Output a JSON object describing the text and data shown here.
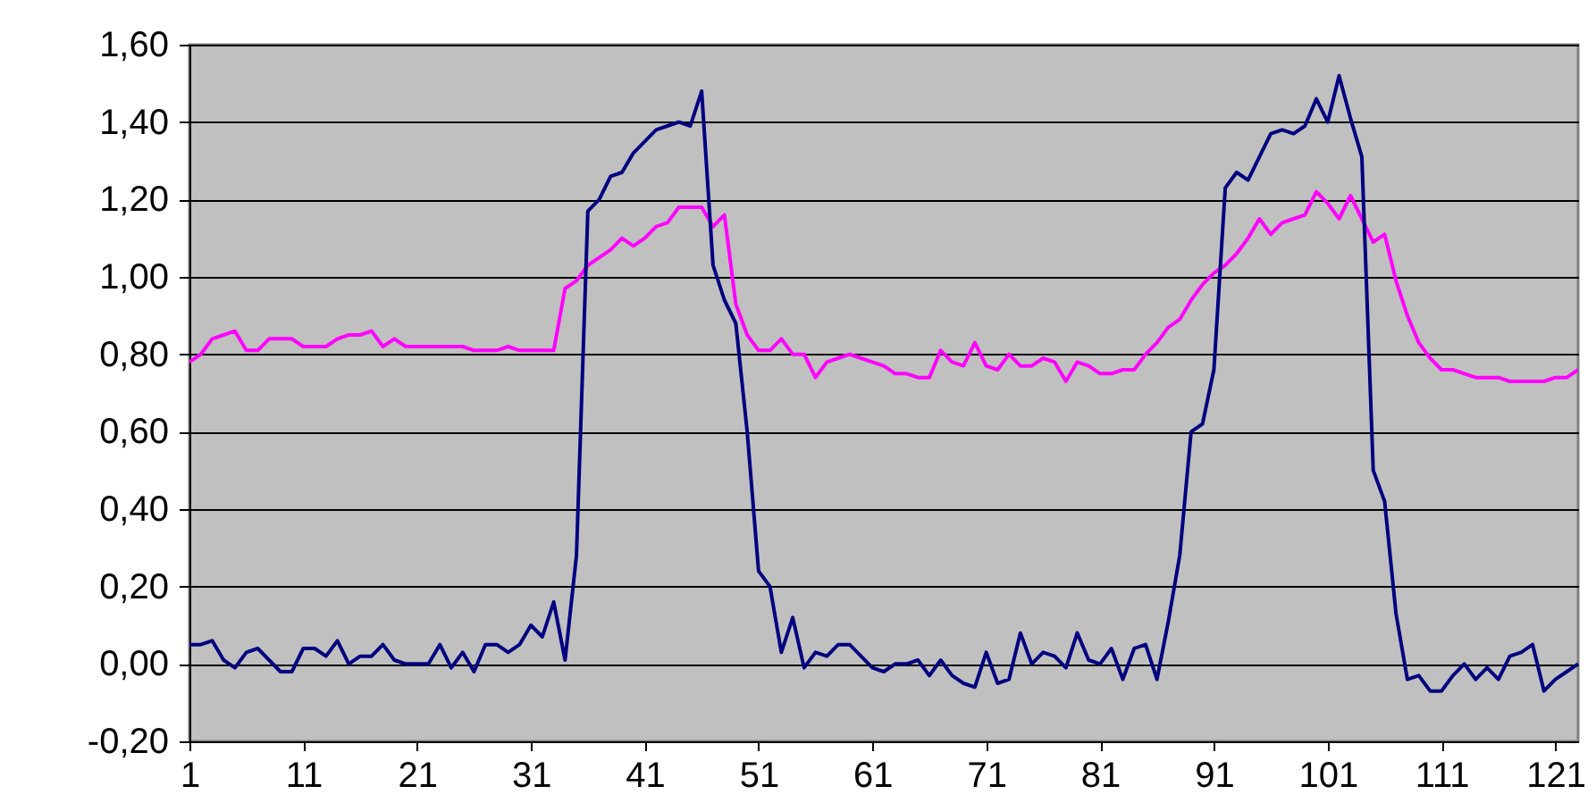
{
  "chart_data": {
    "type": "line",
    "x": [
      1,
      2,
      3,
      4,
      5,
      6,
      7,
      8,
      9,
      10,
      11,
      12,
      13,
      14,
      15,
      16,
      17,
      18,
      19,
      20,
      21,
      22,
      23,
      24,
      25,
      26,
      27,
      28,
      29,
      30,
      31,
      32,
      33,
      34,
      35,
      36,
      37,
      38,
      39,
      40,
      41,
      42,
      43,
      44,
      45,
      46,
      47,
      48,
      49,
      50,
      51,
      52,
      53,
      54,
      55,
      56,
      57,
      58,
      59,
      60,
      61,
      62,
      63,
      64,
      65,
      66,
      67,
      68,
      69,
      70,
      71,
      72,
      73,
      74,
      75,
      76,
      77,
      78,
      79,
      80,
      81,
      82,
      83,
      84,
      85,
      86,
      87,
      88,
      89,
      90,
      91,
      92,
      93,
      94,
      95,
      96,
      97,
      98,
      99,
      100,
      101,
      102,
      103,
      104,
      105,
      106,
      107,
      108,
      109,
      110,
      111,
      112,
      113,
      114,
      115,
      116,
      117,
      118,
      119,
      120,
      121,
      122,
      123
    ],
    "series": [
      {
        "color": "#ff00ff",
        "values": [
          0.78,
          0.8,
          0.84,
          0.85,
          0.86,
          0.81,
          0.81,
          0.84,
          0.84,
          0.84,
          0.82,
          0.82,
          0.82,
          0.84,
          0.85,
          0.85,
          0.86,
          0.82,
          0.84,
          0.82,
          0.82,
          0.82,
          0.82,
          0.82,
          0.82,
          0.81,
          0.81,
          0.81,
          0.82,
          0.81,
          0.81,
          0.81,
          0.81,
          0.97,
          0.99,
          1.03,
          1.05,
          1.07,
          1.1,
          1.08,
          1.1,
          1.13,
          1.14,
          1.18,
          1.18,
          1.18,
          1.13,
          1.16,
          0.93,
          0.85,
          0.81,
          0.81,
          0.84,
          0.8,
          0.8,
          0.74,
          0.78,
          0.79,
          0.8,
          0.79,
          0.78,
          0.77,
          0.75,
          0.75,
          0.74,
          0.74,
          0.81,
          0.78,
          0.77,
          0.83,
          0.77,
          0.76,
          0.8,
          0.77,
          0.77,
          0.79,
          0.78,
          0.73,
          0.78,
          0.77,
          0.75,
          0.75,
          0.76,
          0.76,
          0.8,
          0.83,
          0.87,
          0.89,
          0.94,
          0.98,
          1.01,
          1.03,
          1.06,
          1.1,
          1.15,
          1.11,
          1.14,
          1.15,
          1.16,
          1.22,
          1.19,
          1.15,
          1.21,
          1.15,
          1.09,
          1.11,
          0.99,
          0.9,
          0.83,
          0.79,
          0.76,
          0.76,
          0.75,
          0.74,
          0.74,
          0.74,
          0.73,
          0.73,
          0.73,
          0.73,
          0.74,
          0.74,
          0.76
        ]
      },
      {
        "color": "#000080",
        "values": [
          0.05,
          0.05,
          0.06,
          0.01,
          -0.01,
          0.03,
          0.04,
          0.01,
          -0.02,
          -0.02,
          0.04,
          0.04,
          0.02,
          0.06,
          0.0,
          0.02,
          0.02,
          0.05,
          0.01,
          0.0,
          0.0,
          0.0,
          0.05,
          -0.01,
          0.03,
          -0.02,
          0.05,
          0.05,
          0.03,
          0.05,
          0.1,
          0.07,
          0.16,
          0.01,
          0.28,
          1.17,
          1.2,
          1.26,
          1.27,
          1.32,
          1.35,
          1.38,
          1.39,
          1.4,
          1.39,
          1.48,
          1.03,
          0.94,
          0.88,
          0.6,
          0.24,
          0.2,
          0.03,
          0.12,
          -0.01,
          0.03,
          0.02,
          0.05,
          0.05,
          0.02,
          -0.01,
          -0.02,
          0.0,
          0.0,
          0.01,
          -0.03,
          0.01,
          -0.03,
          -0.05,
          -0.06,
          0.03,
          -0.05,
          -0.04,
          0.08,
          0.0,
          0.03,
          0.02,
          -0.01,
          0.08,
          0.01,
          0.0,
          0.04,
          -0.04,
          0.04,
          0.05,
          -0.04,
          0.11,
          0.28,
          0.6,
          0.62,
          0.76,
          1.23,
          1.27,
          1.25,
          1.31,
          1.37,
          1.38,
          1.37,
          1.39,
          1.46,
          1.4,
          1.52,
          1.41,
          1.31,
          0.5,
          0.42,
          0.13,
          -0.04,
          -0.03,
          -0.07,
          -0.07,
          -0.03,
          0.0,
          -0.04,
          -0.01,
          -0.04,
          0.02,
          0.03,
          0.05,
          -0.07,
          -0.04,
          -0.02,
          0.0
        ]
      }
    ],
    "xlim": [
      1,
      123
    ],
    "xticks": [
      1,
      11,
      21,
      31,
      41,
      51,
      61,
      71,
      81,
      91,
      101,
      111,
      121
    ],
    "ylim": [
      -0.2,
      1.6
    ],
    "yticks": [
      {
        "value": -0.2,
        "label": "-0,20"
      },
      {
        "value": 0,
        "label": "0,00"
      },
      {
        "value": 0.2,
        "label": "0,20"
      },
      {
        "value": 0.4,
        "label": "0,40"
      },
      {
        "value": 0.6,
        "label": "0,60"
      },
      {
        "value": 0.8,
        "label": "0,80"
      },
      {
        "value": 1.0,
        "label": "1,00"
      },
      {
        "value": 1.2,
        "label": "1,20"
      },
      {
        "value": 1.4,
        "label": "1,40"
      },
      {
        "value": 1.6,
        "label": "1,60"
      }
    ],
    "grid": "y"
  }
}
